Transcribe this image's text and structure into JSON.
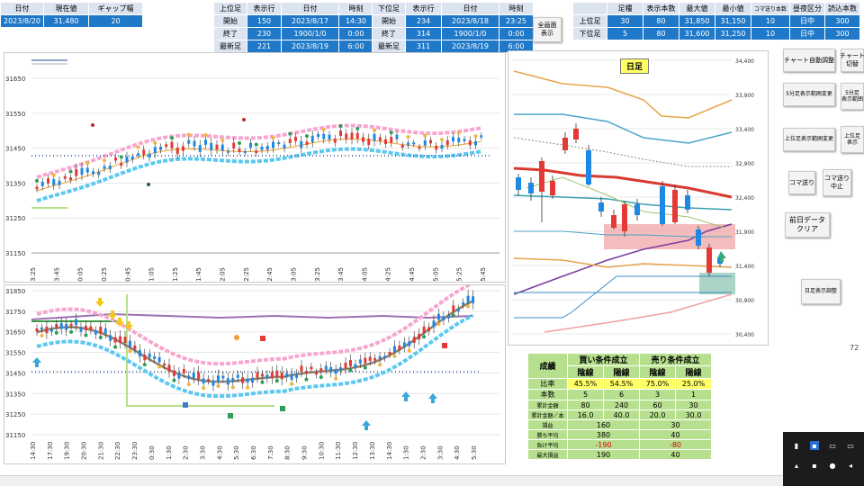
{
  "topleft": {
    "headers": [
      "日付",
      "現在値",
      "ギャップ幅"
    ],
    "values": [
      "2023/8/20",
      "31,480",
      "20"
    ]
  },
  "upper_block": {
    "headers": [
      "上位足",
      "表示行",
      "日付",
      "時刻"
    ],
    "rows": [
      {
        "label": "開始",
        "row": "150",
        "date": "2023/8/17",
        "time": "14:30"
      },
      {
        "label": "終了",
        "row": "230",
        "date": "1900/1/0",
        "time": "0:00"
      },
      {
        "label": "最新足",
        "row": "221",
        "date": "2023/8/19",
        "time": "6:00"
      }
    ]
  },
  "lower_block": {
    "headers": [
      "下位足",
      "表示行",
      "日付",
      "時刻"
    ],
    "rows": [
      {
        "label": "開始",
        "row": "234",
        "date": "2023/8/18",
        "time": "23:25"
      },
      {
        "label": "終了",
        "row": "314",
        "date": "1900/1/0",
        "time": "0:00"
      },
      {
        "label": "最新足",
        "row": "311",
        "date": "2023/8/19",
        "time": "6:00"
      }
    ]
  },
  "fullscreen_button": "全画面\n表示",
  "right_table": {
    "headers": [
      "",
      "足種",
      "表示本数",
      "最大値",
      "最小値",
      "コマ送り本数",
      "昼夜区分",
      "読込本数"
    ],
    "rows": [
      [
        "上位足",
        "30",
        "80",
        "31,850",
        "31,150",
        "10",
        "日中",
        "300"
      ],
      [
        "下位足",
        "5",
        "80",
        "31,600",
        "31,250",
        "10",
        "日中",
        "300"
      ]
    ]
  },
  "buttons": {
    "chart_auto": "チャート自動調整",
    "chart_cut": "チャート\n切替",
    "lower_display": "5分足表示範囲変更",
    "lower_display2": "5分足\n表示範囲",
    "upper_display": "上位足表示範囲変更",
    "upper_display2": "上位足\n表示",
    "koma": "コマ送り",
    "koma_stop": "コマ送り\n中止",
    "prev_clear": "前日データ\nクリア",
    "daily_show": "日足表示調整"
  },
  "side_number": "72",
  "daily_title": "日足",
  "upper_chart": {
    "y_ticks": [
      "31650",
      "31550",
      "31450",
      "31350",
      "31250",
      "31150"
    ],
    "x_ticks": [
      "23:25",
      "23:45",
      "0:05",
      "0:25",
      "0:45",
      "1:05",
      "1:25",
      "1:45",
      "2:05",
      "2:25",
      "2:45",
      "3:05",
      "3:25",
      "3:45",
      "4:05",
      "4:25",
      "4:45",
      "5:05",
      "5:25",
      "5:45"
    ]
  },
  "lower_chart": {
    "y_ticks": [
      "31850",
      "31750",
      "31650",
      "31550",
      "31450",
      "31350",
      "31250",
      "31150"
    ],
    "x_ticks": [
      "14:30",
      "17:30",
      "19:30",
      "20:30",
      "21:30",
      "22:30",
      "23:30",
      "0:30",
      "1:30",
      "2:30",
      "3:30",
      "4:30",
      "5:30",
      "6:30",
      "7:30",
      "8:30",
      "9:30",
      "10:30",
      "11:30",
      "12:30",
      "13:30",
      "14:30",
      "1:30",
      "2:30",
      "3:30",
      "4:30",
      "5:30"
    ]
  },
  "daily_chart": {
    "y_ticks": [
      "34,400",
      "33,900",
      "33,400",
      "32,900",
      "32,400",
      "31,900",
      "31,400",
      "30,900",
      "30,400"
    ]
  },
  "stats": {
    "title": "成績",
    "buy_header": "買い条件成立",
    "sell_header": "売り条件成立",
    "sub": [
      "陰線",
      "陽線",
      "陰線",
      "陽線"
    ],
    "rows": [
      {
        "label": "比率",
        "vals": [
          "45.5%",
          "54.5%",
          "75.0%",
          "25.0%"
        ]
      },
      {
        "label": "本数",
        "vals": [
          "5",
          "6",
          "3",
          "1"
        ]
      },
      {
        "label": "累計金額",
        "vals": [
          "80",
          "240",
          "60",
          "30"
        ]
      },
      {
        "label": "累計金額／本",
        "vals": [
          "16.0",
          "40.0",
          "20.0",
          "30.0"
        ]
      }
    ],
    "rows2": [
      {
        "label": "損益",
        "buy": "160",
        "sell": "30"
      },
      {
        "label": "勝ち平均",
        "buy": "380",
        "sell": "40"
      },
      {
        "label": "負け平均",
        "buy": "-190",
        "sell": "-80"
      },
      {
        "label": "最大損益",
        "buy": "190",
        "sell": "40"
      }
    ]
  },
  "colors": {
    "header_blue": "#1f78c8",
    "header_light": "#dde4f1",
    "stat_green": "#b7e08e",
    "stat_yellow": "#ffff66",
    "candle_up": "#e53935",
    "candle_dn": "#1e88e5",
    "ma_red": "#e53935"
  }
}
